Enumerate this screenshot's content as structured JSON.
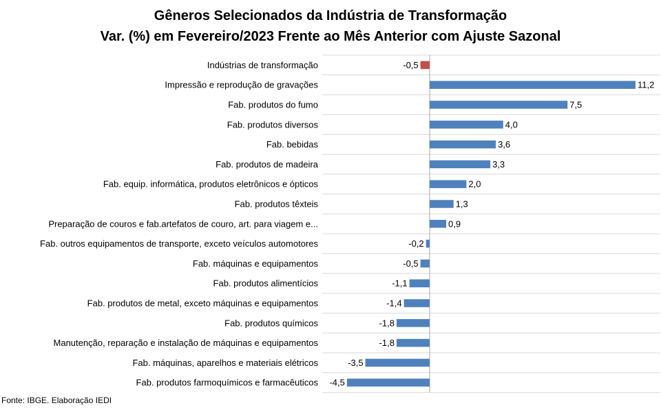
{
  "chart_data": {
    "type": "bar",
    "orientation": "horizontal",
    "title": "Gêneros Selecionados da Indústria de Transformação",
    "subtitle": "Var. (%) em Fevereiro/2023 Frente ao Mês Anterior com Ajuste Sazonal",
    "categories": [
      "Indústrias de transformação",
      "Impressão e reprodução de gravações",
      "Fab. produtos do fumo",
      "Fab. produtos diversos",
      "Fab. bebidas",
      "Fab. produtos de madeira",
      "Fab. equip. informática, produtos eletrônicos e ópticos",
      "Fab. produtos têxteis",
      "Preparação de couros e fab.artefatos de couro, art. para viagem e...",
      "Fab. outros equipamentos de transporte, exceto veículos automotores",
      "Fab. máquinas e equipamentos",
      "Fab. produtos alimentícios",
      "Fab. produtos de metal, exceto máquinas e equipamentos",
      "Fab. produtos químicos",
      "Manutenção, reparação e instalação de máquinas e equipamentos",
      "Fab. máquinas, aparelhos e materiais elétricos",
      "Fab. produtos farmoquímicos e farmacêuticos"
    ],
    "values": [
      -0.5,
      11.2,
      7.5,
      4.0,
      3.6,
      3.3,
      2.0,
      1.3,
      0.9,
      -0.2,
      -0.5,
      -1.1,
      -1.4,
      -1.8,
      -1.8,
      -3.5,
      -4.5
    ],
    "value_labels": [
      "-0,5",
      "11,2",
      "7,5",
      "4,0",
      "3,6",
      "3,3",
      "2,0",
      "1,3",
      "0,9",
      "-0,2",
      "-0,5",
      "-1,1",
      "-1,4",
      "-1,8",
      "-1,8",
      "-3,5",
      "-4,5"
    ],
    "highlight_index": 0,
    "colors": {
      "default": "#4f81bd",
      "highlight": "#c0504d",
      "gridline": "#d9d9d9",
      "axis": "#a6a6a6"
    },
    "xlim": [
      -4.5,
      11.2
    ],
    "grid": true,
    "legend": "none"
  },
  "source": "Fonte: IBGE. Elaboração IEDI"
}
